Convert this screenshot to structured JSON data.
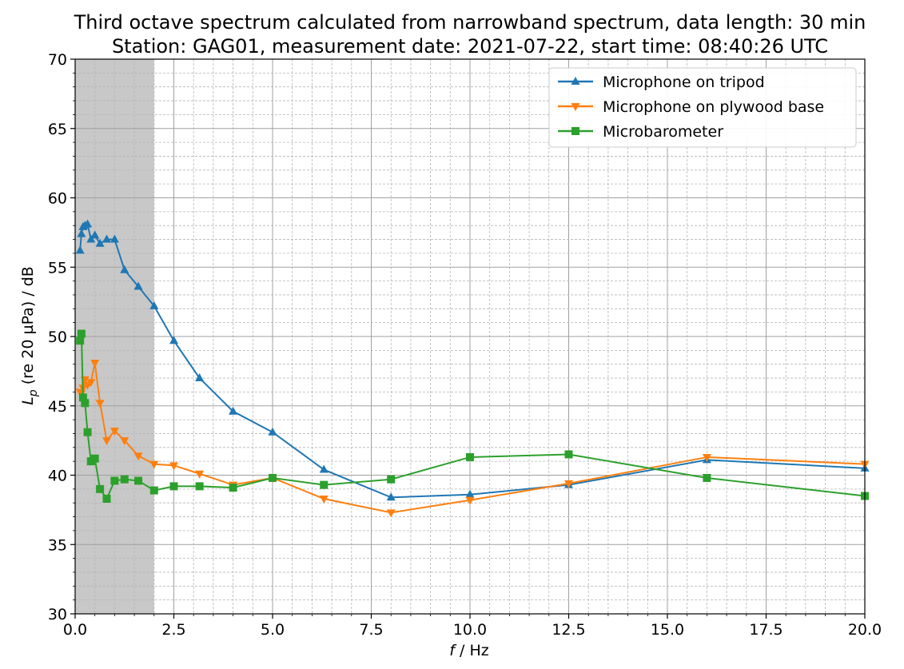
{
  "chart_data": {
    "type": "line",
    "title_line1": "Third octave spectrum calculated from narrowband spectrum, data length: 30 min",
    "title_line2": "Station: GAG01, measurement date: 2021-07-22, start time: 08:40:26 UTC",
    "xlabel": "f / Hz",
    "ylabel": "L_p (re 20 µPa) / dB",
    "xlim": [
      0,
      20
    ],
    "ylim": [
      30,
      70
    ],
    "x_ticks": [
      "0.0",
      "2.5",
      "5.0",
      "7.5",
      "10.0",
      "12.5",
      "15.0",
      "17.5",
      "20.0"
    ],
    "y_ticks": [
      "30",
      "35",
      "40",
      "45",
      "50",
      "55",
      "60",
      "65",
      "70"
    ],
    "grid": true,
    "minor_grid": true,
    "shaded_region": {
      "x_from": 0,
      "x_to": 2,
      "color": "#c8c8c8"
    },
    "legend_position": "upper right",
    "series": [
      {
        "name": "Microphone on tripod",
        "color": "#1f77b4",
        "marker": "triangle-up",
        "x": [
          0.125,
          0.16,
          0.2,
          0.25,
          0.315,
          0.4,
          0.5,
          0.63,
          0.8,
          1.0,
          1.25,
          1.6,
          2.0,
          2.5,
          3.15,
          4.0,
          5.0,
          6.3,
          8.0,
          10.0,
          12.5,
          16.0,
          20.0
        ],
        "y": [
          56.2,
          57.4,
          57.9,
          58.0,
          58.1,
          57.0,
          57.3,
          56.7,
          57.0,
          57.0,
          54.8,
          53.6,
          52.2,
          49.7,
          47.0,
          44.6,
          43.1,
          40.4,
          38.4,
          38.6,
          39.3,
          41.1,
          40.5
        ]
      },
      {
        "name": "Microphone on plywood base",
        "color": "#ff7f0e",
        "marker": "triangle-down",
        "x": [
          0.125,
          0.16,
          0.2,
          0.25,
          0.315,
          0.4,
          0.5,
          0.63,
          0.8,
          1.0,
          1.25,
          1.6,
          2.0,
          2.5,
          3.15,
          4.0,
          5.0,
          6.3,
          8.0,
          10.0,
          12.5,
          16.0,
          20.0
        ],
        "y": [
          46.0,
          45.9,
          46.3,
          46.9,
          46.5,
          46.7,
          48.1,
          45.2,
          42.5,
          43.2,
          42.5,
          41.4,
          40.8,
          40.7,
          40.1,
          39.3,
          39.8,
          38.3,
          37.3,
          38.2,
          39.4,
          41.3,
          40.8
        ]
      },
      {
        "name": "Microbarometer",
        "color": "#2ca02c",
        "marker": "square",
        "x": [
          0.125,
          0.16,
          0.2,
          0.25,
          0.315,
          0.4,
          0.5,
          0.63,
          0.8,
          1.0,
          1.25,
          1.6,
          2.0,
          2.5,
          3.15,
          4.0,
          5.0,
          6.3,
          8.0,
          10.0,
          12.5,
          16.0,
          20.0
        ],
        "y": [
          49.7,
          50.2,
          45.6,
          45.2,
          43.1,
          41.0,
          41.2,
          39.0,
          38.3,
          39.6,
          39.7,
          39.6,
          38.9,
          39.2,
          39.2,
          39.1,
          39.8,
          39.3,
          39.7,
          41.3,
          41.5,
          39.8,
          38.5
        ]
      }
    ]
  }
}
